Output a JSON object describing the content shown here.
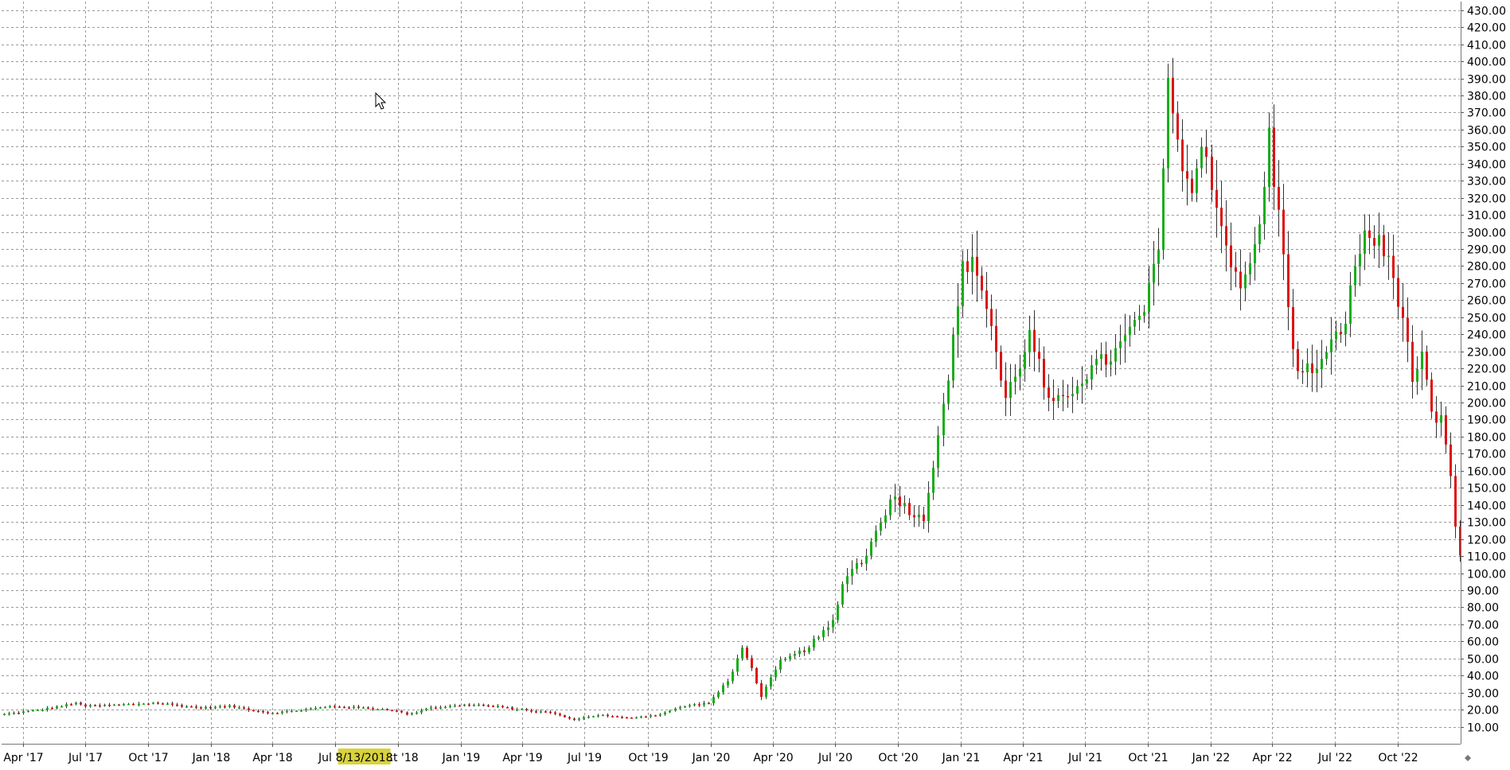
{
  "chart_data": {
    "type": "candlestick",
    "title": "",
    "xlabel": "",
    "ylabel": "",
    "y_axis_side": "right",
    "ylim": [
      0,
      435
    ],
    "grid": true,
    "y_ticks": [
      "10.00",
      "20.00",
      "30.00",
      "40.00",
      "50.00",
      "60.00",
      "70.00",
      "80.00",
      "90.00",
      "100.00",
      "110.00",
      "120.00",
      "130.00",
      "140.00",
      "150.00",
      "160.00",
      "170.00",
      "180.00",
      "190.00",
      "200.00",
      "210.00",
      "220.00",
      "230.00",
      "240.00",
      "250.00",
      "260.00",
      "270.00",
      "280.00",
      "290.00",
      "300.00",
      "310.00",
      "320.00",
      "330.00",
      "340.00",
      "350.00",
      "360.00",
      "370.00",
      "380.00",
      "390.00",
      "400.00",
      "410.00",
      "420.00",
      "430.00"
    ],
    "x_ticks": [
      {
        "label": "Apr '17",
        "date": "2017-04-01"
      },
      {
        "label": "Jul '17",
        "date": "2017-07-01"
      },
      {
        "label": "Oct '17",
        "date": "2017-10-01"
      },
      {
        "label": "Jan '18",
        "date": "2018-01-01"
      },
      {
        "label": "Apr '18",
        "date": "2018-04-01"
      },
      {
        "label": "Jul '18",
        "date": "2018-07-01"
      },
      {
        "label": "Oct '18",
        "date": "2018-10-01"
      },
      {
        "label": "Jan '19",
        "date": "2019-01-01"
      },
      {
        "label": "Apr '19",
        "date": "2019-04-01"
      },
      {
        "label": "Jul '19",
        "date": "2019-07-01"
      },
      {
        "label": "Oct '19",
        "date": "2019-10-01"
      },
      {
        "label": "Jan '20",
        "date": "2020-01-01"
      },
      {
        "label": "Apr '20",
        "date": "2020-04-01"
      },
      {
        "label": "Jul '20",
        "date": "2020-07-01"
      },
      {
        "label": "Oct '20",
        "date": "2020-10-01"
      },
      {
        "label": "Jan '21",
        "date": "2021-01-01"
      },
      {
        "label": "Apr '21",
        "date": "2021-04-01"
      },
      {
        "label": "Jul '21",
        "date": "2021-07-01"
      },
      {
        "label": "Oct '21",
        "date": "2021-10-01"
      },
      {
        "label": "Jan '22",
        "date": "2022-01-01"
      },
      {
        "label": "Apr '22",
        "date": "2022-04-01"
      },
      {
        "label": "Jul '22",
        "date": "2022-07-01"
      },
      {
        "label": "Oct '22",
        "date": "2022-10-01"
      }
    ],
    "x_range": [
      "2017-03-01",
      "2022-12-31"
    ],
    "crosshair_label": {
      "text": "8/13/2018",
      "date": "2018-08-13"
    },
    "colors": {
      "up": "#1aad1a",
      "down": "#dd1111",
      "wick": "#333333",
      "highlight": "#d8d33a"
    },
    "anchors": [
      [
        "2017-03-01",
        17
      ],
      [
        "2017-05-01",
        20
      ],
      [
        "2017-06-25",
        24
      ],
      [
        "2017-07-05",
        22
      ],
      [
        "2017-09-01",
        23
      ],
      [
        "2017-10-15",
        24
      ],
      [
        "2017-12-20",
        21
      ],
      [
        "2018-02-01",
        22
      ],
      [
        "2018-04-01",
        18
      ],
      [
        "2018-05-20",
        20
      ],
      [
        "2018-07-01",
        22
      ],
      [
        "2018-08-13",
        21
      ],
      [
        "2018-09-25",
        20
      ],
      [
        "2018-10-20",
        17
      ],
      [
        "2018-11-15",
        21
      ],
      [
        "2019-01-20",
        23
      ],
      [
        "2019-02-20",
        22
      ],
      [
        "2019-04-01",
        20
      ],
      [
        "2019-05-20",
        18
      ],
      [
        "2019-06-15",
        14
      ],
      [
        "2019-07-25",
        17
      ],
      [
        "2019-09-01",
        15
      ],
      [
        "2019-10-20",
        17
      ],
      [
        "2019-11-25",
        22
      ],
      [
        "2020-01-01",
        24
      ],
      [
        "2020-02-01",
        38
      ],
      [
        "2020-02-20",
        58
      ],
      [
        "2020-03-18",
        28
      ],
      [
        "2020-04-15",
        48
      ],
      [
        "2020-05-20",
        55
      ],
      [
        "2020-06-30",
        70
      ],
      [
        "2020-07-20",
        100
      ],
      [
        "2020-08-20",
        110
      ],
      [
        "2020-09-05",
        130
      ],
      [
        "2020-09-30",
        145
      ],
      [
        "2020-11-10",
        130
      ],
      [
        "2020-12-01",
        180
      ],
      [
        "2020-12-25",
        240
      ],
      [
        "2021-01-08",
        285
      ],
      [
        "2021-01-30",
        275
      ],
      [
        "2021-02-20",
        240
      ],
      [
        "2021-03-08",
        200
      ],
      [
        "2021-04-01",
        225
      ],
      [
        "2021-04-15",
        240
      ],
      [
        "2021-05-15",
        195
      ],
      [
        "2021-06-30",
        215
      ],
      [
        "2021-08-20",
        230
      ],
      [
        "2021-10-01",
        255
      ],
      [
        "2021-10-20",
        290
      ],
      [
        "2021-11-05",
        395
      ],
      [
        "2021-11-22",
        340
      ],
      [
        "2021-12-10",
        320
      ],
      [
        "2021-12-25",
        355
      ],
      [
        "2022-01-20",
        300
      ],
      [
        "2022-02-20",
        265
      ],
      [
        "2022-03-15",
        300
      ],
      [
        "2022-03-30",
        355
      ],
      [
        "2022-04-20",
        285
      ],
      [
        "2022-05-10",
        215
      ],
      [
        "2022-06-20",
        225
      ],
      [
        "2022-07-20",
        250
      ],
      [
        "2022-08-15",
        300
      ],
      [
        "2022-09-01",
        295
      ],
      [
        "2022-09-20",
        285
      ],
      [
        "2022-10-10",
        255
      ],
      [
        "2022-10-25",
        215
      ],
      [
        "2022-11-10",
        225
      ],
      [
        "2022-11-25",
        185
      ],
      [
        "2022-12-10",
        190
      ],
      [
        "2022-12-25",
        140
      ],
      [
        "2022-12-31",
        112
      ]
    ]
  }
}
